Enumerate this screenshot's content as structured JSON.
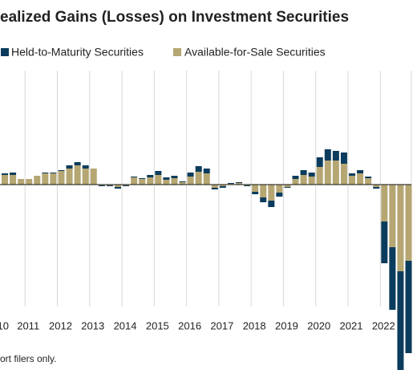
{
  "chart_data": {
    "type": "bar",
    "stacked": true,
    "title": "ealized Gains (Losses) on Investment Securities",
    "footnote": "ort filers only.",
    "x_edge_label": "10",
    "categories": [
      null,
      null,
      null,
      "2011",
      null,
      null,
      null,
      "2012",
      null,
      null,
      null,
      "2013",
      null,
      null,
      null,
      "2014",
      null,
      null,
      null,
      "2015",
      null,
      null,
      null,
      "2016",
      null,
      null,
      null,
      "2017",
      null,
      null,
      null,
      "2018",
      null,
      null,
      null,
      "2019",
      null,
      null,
      null,
      "2020",
      null,
      null,
      null,
      "2021",
      null,
      null,
      null,
      "2022",
      null,
      null,
      null
    ],
    "series": [
      {
        "name": "Held-to-Maturity Securities",
        "color": "#0b3c5d",
        "values": [
          6,
          9,
          0,
          0,
          0,
          3,
          3,
          3,
          12,
          12,
          12,
          0,
          -3,
          -3,
          -6,
          -3,
          3,
          3,
          9,
          15,
          9,
          9,
          3,
          15,
          21,
          18,
          -6,
          -6,
          3,
          3,
          -3,
          -9,
          -18,
          -24,
          -15,
          -3,
          12,
          18,
          15,
          36,
          42,
          36,
          42,
          9,
          12,
          6,
          -6,
          -156,
          -234,
          -369,
          -345
        ]
      },
      {
        "name": "Available-for-Sale Securities",
        "color": "#b5a672",
        "values": [
          36,
          36,
          21,
          21,
          33,
          42,
          42,
          51,
          60,
          72,
          60,
          60,
          -3,
          -3,
          -9,
          -3,
          27,
          21,
          27,
          36,
          18,
          24,
          9,
          30,
          48,
          42,
          -12,
          -6,
          3,
          6,
          -3,
          -27,
          -48,
          -60,
          -30,
          -9,
          21,
          36,
          30,
          66,
          90,
          90,
          78,
          33,
          42,
          24,
          -9,
          -138,
          -234,
          -324,
          -285
        ]
      }
    ],
    "ylim": [
      -711,
      414
    ],
    "grid": true
  }
}
